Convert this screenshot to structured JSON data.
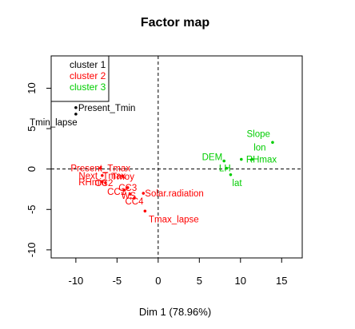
{
  "chart_data": {
    "type": "scatter",
    "title": "Factor map",
    "xlabel": "Dim 1 (78.96%)",
    "ylabel": "",
    "xlim": [
      -13,
      17.5
    ],
    "ylim": [
      -11,
      14
    ],
    "xticks": [
      -10,
      -5,
      0,
      5,
      10,
      15
    ],
    "yticks": [
      -10,
      -5,
      0,
      5,
      10
    ],
    "grid": false,
    "legend_position": "top-left",
    "reference_lines": {
      "x": 0,
      "y": 0,
      "style": "dashed"
    },
    "series": [
      {
        "name": "cluster 1",
        "color": "#000000",
        "points": [
          {
            "label": "Present_Tmin",
            "x": -10.0,
            "y": 7.6
          },
          {
            "label": "Tmin_lapse",
            "x": -10.0,
            "y": 6.8
          }
        ]
      },
      {
        "name": "cluster 2",
        "color": "#ff0000",
        "points": [
          {
            "label": "Present_Tmax",
            "x": -7.0,
            "y": 0.1
          },
          {
            "label": "Next_Tmax",
            "x": -6.8,
            "y": -0.8
          },
          {
            "label": "Tmoy",
            "x": -4.3,
            "y": -0.9
          },
          {
            "label": "RHmin",
            "x": -6.8,
            "y": -1.6
          },
          {
            "label": "CC2",
            "x": -6.4,
            "y": -1.7
          },
          {
            "label": "CC3",
            "x": -3.7,
            "y": -2.3
          },
          {
            "label": "CC1",
            "x": -4.1,
            "y": -2.6
          },
          {
            "label": "WS",
            "x": -3.4,
            "y": -3.1
          },
          {
            "label": "Solar.radiation",
            "x": -1.8,
            "y": -3.0
          },
          {
            "label": "CC4",
            "x": -2.9,
            "y": -3.6
          },
          {
            "label": "Tmax_lapse",
            "x": -1.6,
            "y": -5.2
          }
        ]
      },
      {
        "name": "cluster 3",
        "color": "#00cd00",
        "points": [
          {
            "label": "Slope",
            "x": 13.9,
            "y": 3.3
          },
          {
            "label": "DEM",
            "x": 8.0,
            "y": 1.0
          },
          {
            "label": "lon",
            "x": 11.4,
            "y": 1.2
          },
          {
            "label": "LH",
            "x": 8.3,
            "y": 0.1
          },
          {
            "label": "RHmax",
            "x": 10.1,
            "y": 1.2
          },
          {
            "label": "lat",
            "x": 8.8,
            "y": -0.7
          }
        ]
      }
    ]
  }
}
